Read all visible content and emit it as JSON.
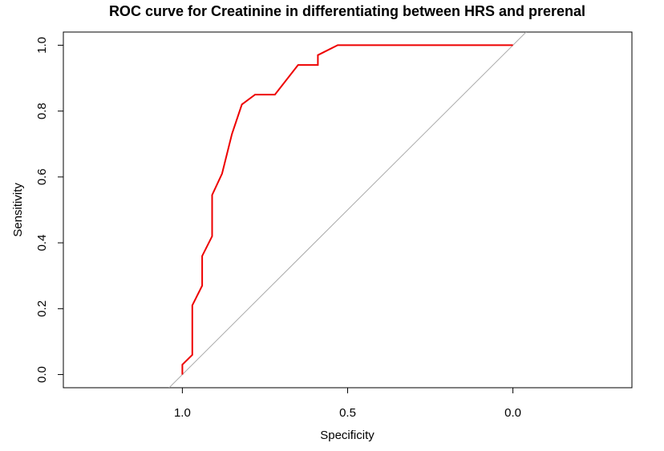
{
  "chart_data": {
    "type": "line",
    "title": "ROC curve for Creatinine in differentiating between HRS and prerenal",
    "xlabel": "Specificity",
    "ylabel": "Sensitivity",
    "x_reversed": true,
    "xlim": [
      1.36,
      -0.36
    ],
    "ylim": [
      -0.04,
      1.04
    ],
    "xticks": [
      1.0,
      0.5,
      0.0
    ],
    "xtick_labels": [
      "1.0",
      "0.5",
      "0.0"
    ],
    "yticks": [
      0.0,
      0.2,
      0.4,
      0.6,
      0.8,
      1.0
    ],
    "ytick_labels": [
      "0.0",
      "0.2",
      "0.4",
      "0.6",
      "0.8",
      "1.0"
    ],
    "grid": false,
    "legend": "none",
    "reference_line": {
      "x": [
        1.04,
        -0.04
      ],
      "y": [
        -0.04,
        1.04
      ],
      "color": "#aaaaaa"
    },
    "series": [
      {
        "color": "#ee0000",
        "x": [
          1.0,
          1.0,
          0.97,
          0.97,
          0.94,
          0.94,
          0.91,
          0.91,
          0.88,
          0.85,
          0.82,
          0.78,
          0.72,
          0.65,
          0.59,
          0.59,
          0.53,
          0.0
        ],
        "y": [
          0.0,
          0.03,
          0.06,
          0.21,
          0.27,
          0.36,
          0.42,
          0.545,
          0.61,
          0.73,
          0.82,
          0.85,
          0.85,
          0.94,
          0.94,
          0.97,
          1.0,
          1.0
        ]
      }
    ]
  }
}
